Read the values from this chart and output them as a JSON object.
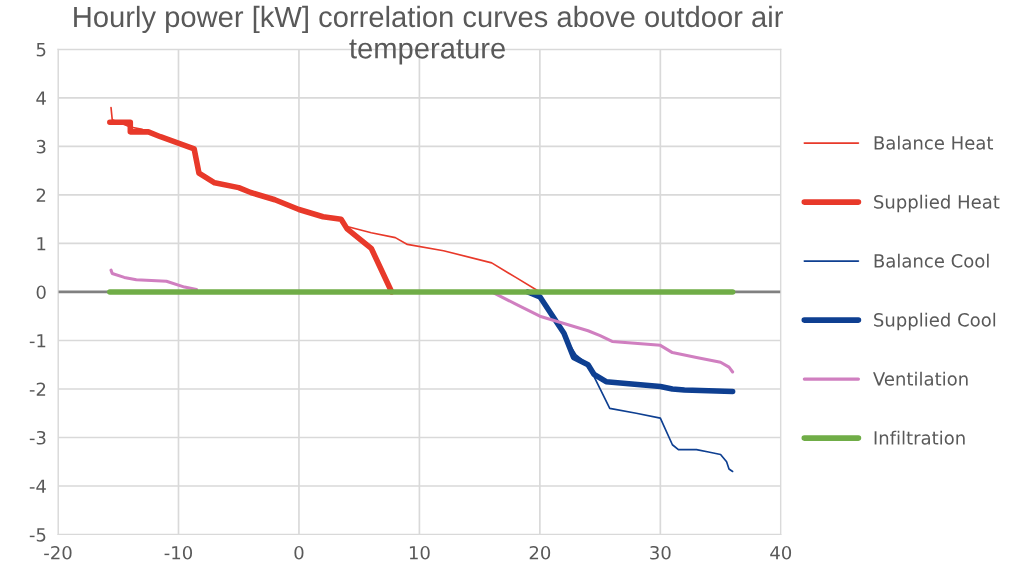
{
  "chart_data": {
    "type": "line",
    "title": "Hourly power [kW] correlation curves above outdoor air temperature",
    "xlim": [
      -20,
      40
    ],
    "xticks": [
      -20,
      -10,
      0,
      10,
      20,
      30,
      40
    ],
    "ylim": [
      -5,
      5
    ],
    "yticks": [
      -5,
      -4,
      -3,
      -2,
      -1,
      0,
      1,
      2,
      3,
      4,
      5
    ],
    "grid": true,
    "legend": "right",
    "marker": "none",
    "line_style": "solid",
    "ref_lines": [
      {
        "axis": "y",
        "value": 0,
        "color": "#808080"
      }
    ],
    "series": [
      {
        "name": "Balance Heat",
        "color": "#e8392a",
        "x": [
          -15.6,
          -15.5,
          -14,
          -13,
          -11.5,
          -8.7,
          -8.3,
          -7,
          -5,
          -4,
          -2,
          0,
          2,
          3.5,
          4,
          6,
          8,
          9,
          12,
          16,
          18,
          20
        ],
        "values": [
          3.8,
          3.55,
          3.4,
          3.35,
          3.2,
          2.95,
          2.45,
          2.25,
          2.15,
          2.05,
          1.9,
          1.7,
          1.55,
          1.5,
          1.35,
          1.22,
          1.12,
          0.98,
          0.85,
          0.6,
          0.3,
          0
        ]
      },
      {
        "name": "Supplied Heat",
        "color": "#e8392a",
        "x": [
          -15.7,
          -14,
          -14,
          -12.5,
          -11.5,
          -8.7,
          -8.3,
          -7,
          -5,
          -4,
          -2,
          0,
          2,
          3.5,
          4,
          6,
          7.7
        ],
        "values": [
          3.5,
          3.5,
          3.3,
          3.3,
          3.2,
          2.95,
          2.45,
          2.25,
          2.15,
          2.05,
          1.9,
          1.7,
          1.55,
          1.5,
          1.3,
          0.9,
          0
        ]
      },
      {
        "name": "Balance Cool",
        "color": "#0e3f91",
        "x": [
          19,
          20,
          22,
          23,
          24,
          25,
          25.8,
          28,
          30,
          31,
          31.5,
          33,
          34,
          35,
          35.5,
          35.7,
          36
        ],
        "values": [
          0,
          -0.05,
          -0.9,
          -1.3,
          -1.5,
          -2.0,
          -2.4,
          -2.5,
          -2.6,
          -3.15,
          -3.25,
          -3.25,
          -3.3,
          -3.35,
          -3.5,
          -3.65,
          -3.7
        ]
      },
      {
        "name": "Supplied Cool",
        "color": "#0e3f91",
        "x": [
          19,
          20,
          22,
          22.8,
          24,
          24.5,
          25.5,
          30,
          31,
          32,
          36
        ],
        "values": [
          0,
          -0.1,
          -0.85,
          -1.35,
          -1.5,
          -1.7,
          -1.85,
          -1.95,
          -2.0,
          -2.02,
          -2.05
        ]
      },
      {
        "name": "Ventilation",
        "color": "#d07fc0",
        "x": [
          -15.6,
          -15.5,
          -14.5,
          -13.5,
          -11,
          -9.5,
          -8.5,
          4,
          16,
          18,
          20,
          22,
          24,
          25,
          26,
          30,
          31,
          33,
          35,
          35.7,
          36
        ],
        "values": [
          0.45,
          0.38,
          0.3,
          0.25,
          0.22,
          0.1,
          0.05,
          null,
          0,
          -0.25,
          -0.5,
          -0.65,
          -0.8,
          -0.9,
          -1.02,
          -1.1,
          -1.25,
          -1.35,
          -1.45,
          -1.55,
          -1.65
        ]
      },
      {
        "name": "Infiltration",
        "color": "#70ad47",
        "x": [
          -15.7,
          36
        ],
        "values": [
          0,
          0
        ]
      }
    ]
  }
}
